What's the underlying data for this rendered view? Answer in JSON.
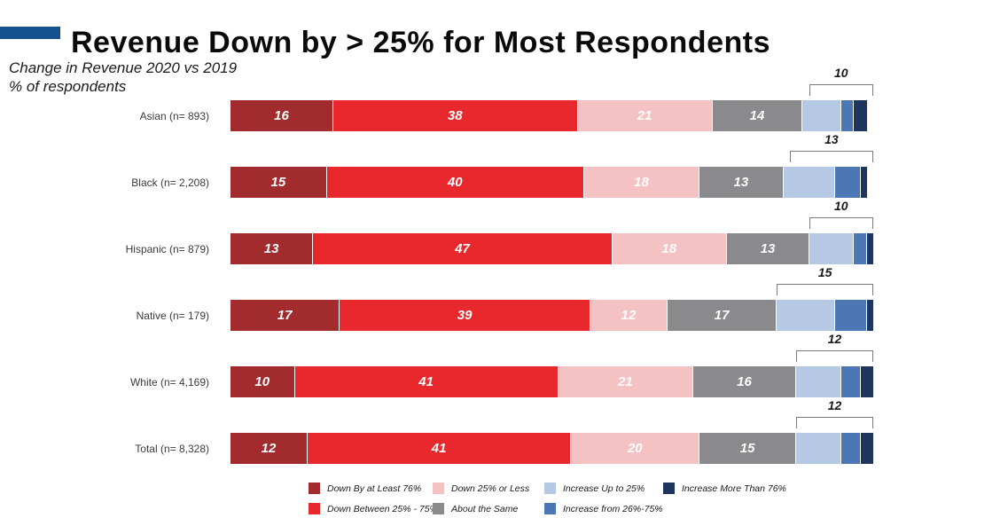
{
  "header": {
    "title": "Revenue Down by > 25% for Most Respondents",
    "subtitle_line1": "Change in Revenue 2020 vs 2019",
    "subtitle_line2": "% of respondents",
    "accent_color": "#15518F"
  },
  "chart_data": {
    "type": "bar",
    "stacked": true,
    "orientation": "horizontal",
    "title": "Change in Revenue 2020 vs 2019",
    "xlabel": "% of respondents",
    "xlim": [
      0,
      100
    ],
    "grid": false,
    "legend_position": "bottom",
    "categories": [
      "Asian (n= 893)",
      "Black (n= 2,208)",
      "Hispanic  (n=  879)",
      "Native (n= 179)",
      "White (n= 4,169)",
      "Total (n= 8,328)"
    ],
    "series": [
      {
        "name": "Down By at Least 76%",
        "color": "#A22B2D",
        "values": [
          16,
          15,
          13,
          17,
          10,
          12
        ]
      },
      {
        "name": "Down Between 25% - 75%",
        "color": "#E8282C",
        "values": [
          38,
          40,
          47,
          39,
          41,
          41
        ]
      },
      {
        "name": "Down 25% or Less",
        "color": "#F5C2C4",
        "values": [
          21,
          18,
          18,
          12,
          21,
          20
        ]
      },
      {
        "name": "About the Same",
        "color": "#8A8A8C",
        "values": [
          14,
          13,
          13,
          17,
          16,
          15
        ]
      },
      {
        "name": "Increase Up to 25%",
        "color": "#B6C9E4",
        "values": [
          6,
          8,
          7,
          9,
          7,
          7
        ]
      },
      {
        "name": "Increase from 26%-75%",
        "color": "#4C77B5",
        "values": [
          2,
          4,
          2,
          5,
          3,
          3
        ]
      },
      {
        "name": "Increase More Than 76%",
        "color": "#1E3560",
        "values": [
          2,
          1,
          1,
          1,
          2,
          2
        ]
      }
    ],
    "value_labels_shown_for_series_indexes": [
      0,
      1,
      2,
      3
    ],
    "increase_brackets": {
      "spans_series_indexes": [
        4,
        5,
        6
      ],
      "labels": [
        10,
        13,
        10,
        15,
        12,
        12
      ]
    },
    "bracket_line_color": "#7a7a7a"
  },
  "legend": {
    "rows": [
      [
        {
          "label": "Down By at Least 76%",
          "color": "#A22B2D"
        },
        {
          "label": "Down 25% or Less",
          "color": "#F5C2C4"
        },
        {
          "label": "Increase Up to 25%",
          "color": "#B6C9E4"
        },
        {
          "label": "Increase More Than 76%",
          "color": "#1E3560"
        }
      ],
      [
        {
          "label": "Down Between 25% - 75%",
          "color": "#E8282C"
        },
        {
          "label": "About the Same",
          "color": "#8A8A8C"
        },
        {
          "label": "Increase from 26%-75%",
          "color": "#4C77B5"
        }
      ]
    ]
  }
}
